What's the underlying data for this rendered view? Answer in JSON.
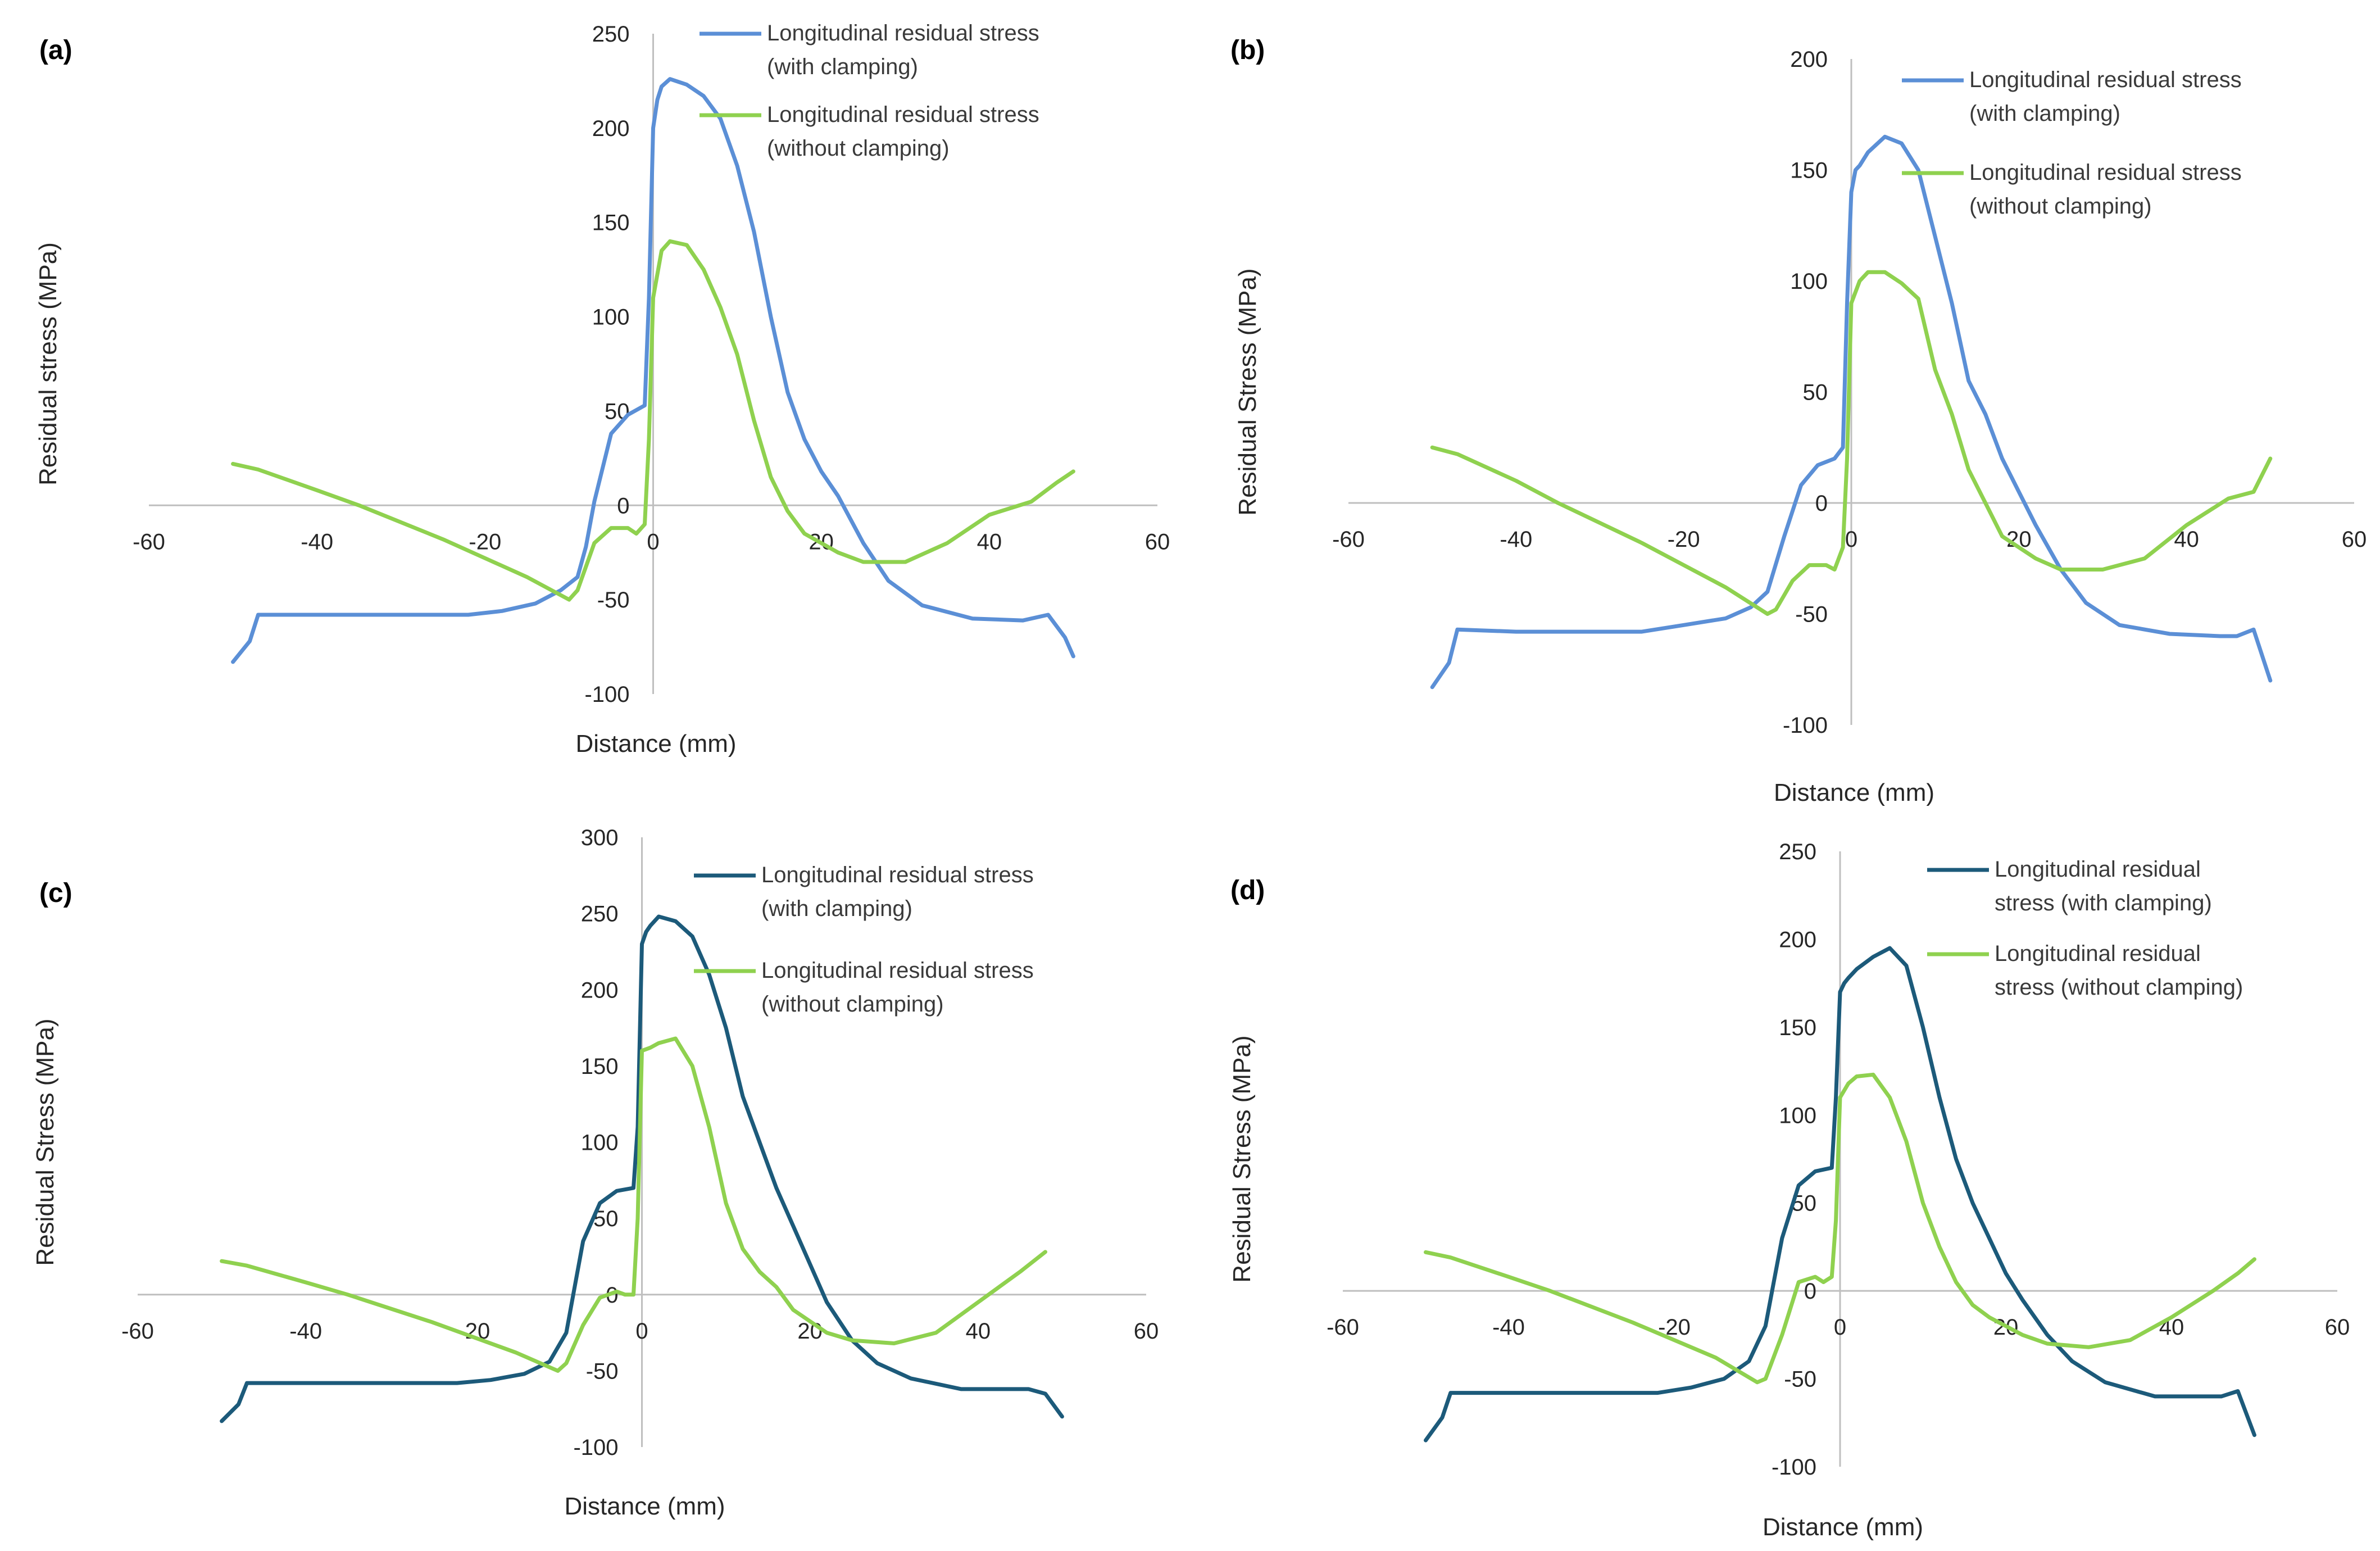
{
  "colors": {
    "with_clamping_light": "#5b8fd6",
    "with_clamping_dark": "#1c5a7a",
    "without_clamping": "#8fd14f",
    "axis": "#bfbfbf"
  },
  "chart_data": [
    {
      "type": "line",
      "label": "(a)",
      "xlabel": "Distance (mm)",
      "ylabel": "Residual stress (MPa)",
      "xlim": [
        -60,
        60
      ],
      "ylim": [
        -100,
        250
      ],
      "xticks": [
        -60,
        -40,
        -20,
        0,
        20,
        40,
        60
      ],
      "yticks": [
        -100,
        -50,
        0,
        50,
        100,
        150,
        200,
        250
      ],
      "series": [
        {
          "name": "Longitudinal residual stress (with clamping)",
          "legend_lines": [
            "Longitudinal residual stress",
            "(with clamping)"
          ],
          "color_key": "with_clamping_light",
          "x": [
            -50,
            -48,
            -47,
            -40,
            -30,
            -22,
            -18,
            -14,
            -11,
            -9,
            -8,
            -7,
            -5,
            -3,
            -1,
            -0.5,
            0,
            0.5,
            1,
            2,
            4,
            6,
            8,
            10,
            12,
            14,
            16,
            18,
            20,
            22,
            25,
            28,
            32,
            38,
            44,
            47,
            49,
            50
          ],
          "y": [
            -83,
            -72,
            -58,
            -58,
            -58,
            -58,
            -56,
            -52,
            -45,
            -38,
            -22,
            2,
            38,
            48,
            53,
            110,
            200,
            215,
            222,
            226,
            223,
            217,
            205,
            180,
            145,
            100,
            60,
            35,
            18,
            5,
            -20,
            -40,
            -53,
            -60,
            -61,
            -58,
            -70,
            -80
          ]
        },
        {
          "name": "Longitudinal residual stress (without clamping)",
          "legend_lines": [
            "Longitudinal residual stress",
            "(without clamping)"
          ],
          "color_key": "without_clamping",
          "x": [
            -50,
            -47,
            -40,
            -35,
            -25,
            -15,
            -10,
            -9,
            -7,
            -5,
            -3,
            -2,
            -1,
            -0.5,
            0,
            1,
            2,
            4,
            6,
            8,
            10,
            12,
            14,
            16,
            18,
            22,
            25,
            30,
            35,
            40,
            45,
            48,
            50
          ],
          "y": [
            22,
            19,
            8,
            0,
            -18,
            -38,
            -50,
            -45,
            -20,
            -12,
            -12,
            -15,
            -10,
            35,
            110,
            135,
            140,
            138,
            125,
            105,
            80,
            45,
            15,
            -3,
            -15,
            -25,
            -30,
            -30,
            -20,
            -5,
            2,
            12,
            18
          ]
        }
      ]
    },
    {
      "type": "line",
      "label": "(b)",
      "xlabel": "Distance (mm)",
      "ylabel": "Residual Stress (MPa)",
      "xlim": [
        -60,
        60
      ],
      "ylim": [
        -100,
        200
      ],
      "xticks": [
        -60,
        -40,
        -20,
        0,
        20,
        40,
        60
      ],
      "yticks": [
        -100,
        -50,
        0,
        50,
        100,
        150,
        200
      ],
      "series": [
        {
          "name": "Longitudinal residual stress (with clamping)",
          "legend_lines": [
            "Longitudinal residual stress",
            "(with clamping)"
          ],
          "color_key": "with_clamping_light",
          "x": [
            -50,
            -48,
            -47,
            -40,
            -30,
            -25,
            -20,
            -15,
            -12,
            -10,
            -8,
            -6,
            -4,
            -2,
            -1,
            -0.5,
            0,
            0.5,
            1,
            2,
            4,
            6,
            8,
            10,
            12,
            14,
            16,
            18,
            20,
            22,
            25,
            28,
            32,
            38,
            44,
            46,
            48,
            50
          ],
          "y": [
            -83,
            -72,
            -57,
            -58,
            -58,
            -58,
            -55,
            -52,
            -47,
            -40,
            -15,
            8,
            17,
            20,
            25,
            90,
            140,
            150,
            152,
            158,
            165,
            162,
            150,
            120,
            90,
            55,
            40,
            20,
            5,
            -10,
            -30,
            -45,
            -55,
            -59,
            -60,
            -60,
            -57,
            -80
          ]
        },
        {
          "name": "Longitudinal residual stress (without clamping)",
          "legend_lines": [
            "Longitudinal residual stress",
            "(without clamping)"
          ],
          "color_key": "without_clamping",
          "x": [
            -50,
            -47,
            -40,
            -35,
            -25,
            -15,
            -10,
            -9,
            -7,
            -5,
            -3,
            -2,
            -1,
            -0.5,
            0,
            1,
            2,
            4,
            6,
            8,
            10,
            12,
            14,
            16,
            18,
            22,
            25,
            30,
            35,
            40,
            45,
            48,
            50
          ],
          "y": [
            25,
            22,
            10,
            0,
            -18,
            -38,
            -50,
            -48,
            -35,
            -28,
            -28,
            -30,
            -20,
            20,
            90,
            100,
            104,
            104,
            99,
            92,
            60,
            40,
            15,
            0,
            -15,
            -25,
            -30,
            -30,
            -25,
            -10,
            2,
            5,
            20
          ]
        }
      ]
    },
    {
      "type": "line",
      "label": "(c)",
      "xlabel": "Distance (mm)",
      "ylabel": "Residual Stress (MPa)",
      "xlim": [
        -60,
        60
      ],
      "ylim": [
        -100,
        300
      ],
      "xticks": [
        -60,
        -40,
        -20,
        0,
        20,
        40,
        60
      ],
      "yticks": [
        -100,
        -50,
        0,
        50,
        100,
        150,
        200,
        250,
        300
      ],
      "series": [
        {
          "name": "Longitudinal residual stress (with clamping)",
          "legend_lines": [
            "Longitudinal residual stress",
            "(with clamping)"
          ],
          "color_key": "with_clamping_dark",
          "x": [
            -50,
            -48,
            -47,
            -40,
            -30,
            -22,
            -18,
            -14,
            -11,
            -9,
            -8,
            -7,
            -5,
            -3,
            -1,
            -0.5,
            0,
            0.5,
            1,
            2,
            4,
            6,
            8,
            10,
            12,
            14,
            16,
            18,
            20,
            22,
            25,
            28,
            32,
            38,
            44,
            46,
            48,
            50
          ],
          "y": [
            -83,
            -72,
            -58,
            -58,
            -58,
            -58,
            -56,
            -52,
            -44,
            -25,
            5,
            35,
            60,
            68,
            70,
            110,
            230,
            238,
            242,
            248,
            245,
            235,
            210,
            175,
            130,
            100,
            70,
            45,
            20,
            -5,
            -30,
            -45,
            -55,
            -62,
            -62,
            -62,
            -65,
            -80
          ]
        },
        {
          "name": "Longitudinal residual stress (without clamping)",
          "legend_lines": [
            "Longitudinal residual stress",
            "(without clamping)"
          ],
          "color_key": "without_clamping",
          "x": [
            -50,
            -47,
            -40,
            -35,
            -25,
            -15,
            -10,
            -9,
            -7,
            -5,
            -3,
            -2,
            -1,
            -0.5,
            0,
            1,
            2,
            4,
            6,
            8,
            10,
            12,
            14,
            16,
            18,
            22,
            25,
            30,
            35,
            40,
            45,
            48
          ],
          "y": [
            22,
            19,
            8,
            0,
            -18,
            -38,
            -50,
            -45,
            -20,
            -2,
            2,
            0,
            0,
            50,
            160,
            162,
            165,
            168,
            150,
            110,
            60,
            30,
            15,
            5,
            -10,
            -25,
            -30,
            -32,
            -25,
            -5,
            15,
            28
          ]
        }
      ]
    },
    {
      "type": "line",
      "label": "(d)",
      "xlabel": "Distance (mm)",
      "ylabel": "Residual Stress (MPa)",
      "xlim": [
        -60,
        60
      ],
      "ylim": [
        -100,
        250
      ],
      "xticks": [
        -60,
        -40,
        -20,
        0,
        20,
        40,
        60
      ],
      "yticks": [
        -100,
        -50,
        0,
        50,
        100,
        150,
        200,
        250
      ],
      "series": [
        {
          "name": "Longitudinal residual stress (with clamping)",
          "legend_lines": [
            "Longitudinal residual",
            "stress (with clamping)"
          ],
          "color_key": "with_clamping_dark",
          "x": [
            -50,
            -48,
            -47,
            -40,
            -30,
            -22,
            -18,
            -14,
            -11,
            -9,
            -8,
            -7,
            -5,
            -3,
            -1,
            -0.5,
            0,
            0.5,
            1,
            2,
            4,
            6,
            8,
            10,
            12,
            14,
            16,
            18,
            20,
            22,
            25,
            28,
            32,
            38,
            44,
            46,
            48,
            50
          ],
          "y": [
            -85,
            -72,
            -58,
            -58,
            -58,
            -58,
            -55,
            -50,
            -40,
            -20,
            5,
            30,
            60,
            68,
            70,
            110,
            170,
            175,
            178,
            183,
            190,
            195,
            185,
            150,
            110,
            75,
            50,
            30,
            10,
            -5,
            -25,
            -40,
            -52,
            -60,
            -60,
            -60,
            -57,
            -82
          ]
        },
        {
          "name": "Longitudinal residual stress (without clamping)",
          "legend_lines": [
            "Longitudinal residual",
            "stress (without clamping)"
          ],
          "color_key": "without_clamping",
          "x": [
            -50,
            -47,
            -40,
            -35,
            -25,
            -15,
            -10,
            -9,
            -7,
            -5,
            -3,
            -2,
            -1,
            -0.5,
            0,
            1,
            2,
            4,
            6,
            8,
            10,
            12,
            14,
            16,
            18,
            22,
            25,
            30,
            35,
            40,
            45,
            48,
            50
          ],
          "y": [
            22,
            19,
            8,
            0,
            -18,
            -38,
            -52,
            -50,
            -25,
            5,
            8,
            5,
            8,
            40,
            110,
            118,
            122,
            123,
            110,
            85,
            50,
            25,
            5,
            -8,
            -15,
            -25,
            -30,
            -32,
            -28,
            -15,
            0,
            10,
            18
          ]
        }
      ]
    }
  ]
}
